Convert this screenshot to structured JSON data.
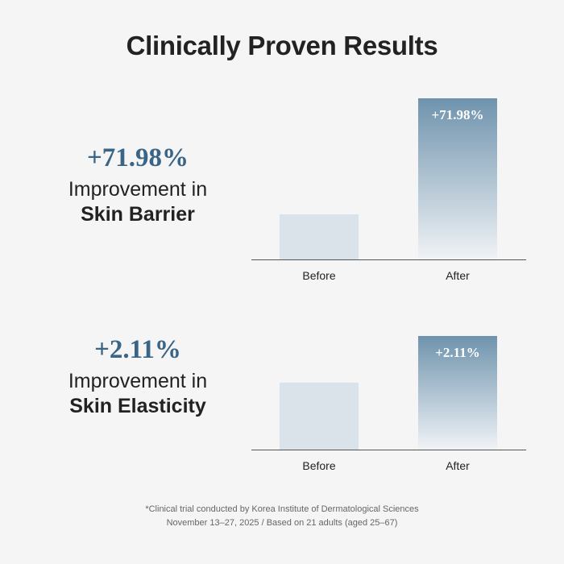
{
  "title": "Clinically Proven Results",
  "colors": {
    "accent": "#3a6586",
    "before_bar": "#dbe3ea",
    "after_bar_top": "#6f93ad",
    "after_bar_bottom": "#f0f3f6",
    "axis": "#555555"
  },
  "chart_data": [
    {
      "type": "bar",
      "headline": "+71.98%",
      "caption_line1": "Improvement in",
      "caption_line2": "Skin Barrier",
      "categories": [
        "Before",
        "After"
      ],
      "values": [
        28,
        100
      ],
      "value_labels": [
        "",
        "+71.98%"
      ]
    },
    {
      "type": "bar",
      "headline": "+2.11%",
      "caption_line1": "Improvement in",
      "caption_line2": "Skin Elasticity",
      "categories": [
        "Before",
        "After"
      ],
      "values": [
        59,
        100
      ],
      "value_labels": [
        "",
        "+2.11%"
      ]
    }
  ],
  "footnote": {
    "line1": "*Clinical trial conducted by Korea Institute of Dermatological Sciences",
    "line2": "November 13–27, 2025 / Based on 21 adults (aged 25–67)"
  }
}
